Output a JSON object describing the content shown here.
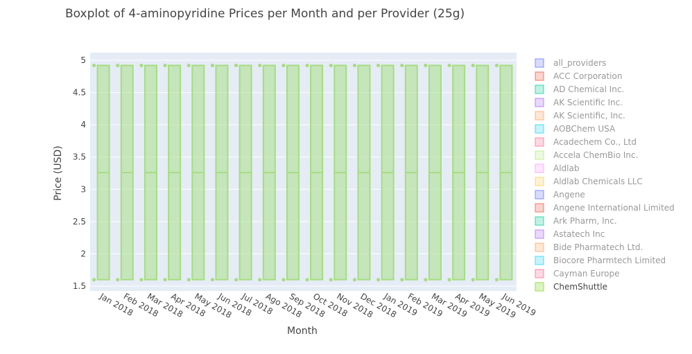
{
  "chart_data": {
    "type": "box",
    "title": "Boxplot of 4-aminopyridine Prices per Month and per Provider (25g)",
    "xlabel": "Month",
    "ylabel": "Price (USD)",
    "ylim": [
      1.5,
      5
    ],
    "yticks": [
      "1.5",
      "2",
      "2.5",
      "3",
      "3.5",
      "4",
      "4.5",
      "5"
    ],
    "categories": [
      "Jan 2018",
      "Feb 2018",
      "Mar 2018",
      "Apr 2018",
      "May 2018",
      "Jun 2018",
      "Jul 2018",
      "Ago 2018",
      "Sep 2018",
      "Oct 2018",
      "Nov 2018",
      "Dec 2018",
      "Jan 2019",
      "Feb 2019",
      "Mar 2019",
      "Apr 2019",
      "May 2019",
      "Jun 2019"
    ],
    "box": {
      "min": 1.6,
      "q1": 1.6,
      "median": 3.26,
      "q3": 4.92,
      "max": 4.92,
      "points": [
        4.92,
        1.6
      ]
    },
    "series_color": "#a6dd80",
    "legend": {
      "position": "right",
      "items": [
        {
          "name": "all_providers",
          "color": "#636efa",
          "active": false
        },
        {
          "name": "ACC Corporation",
          "color": "#ef553b",
          "active": false
        },
        {
          "name": "AD Chemical Inc.",
          "color": "#00cc96",
          "active": false
        },
        {
          "name": "AK Scientific Inc.",
          "color": "#ab63fa",
          "active": false
        },
        {
          "name": "AK Scientific, Inc.",
          "color": "#ffa15a",
          "active": false
        },
        {
          "name": "AOBChem USA",
          "color": "#19d3f3",
          "active": false
        },
        {
          "name": "Acadechem Co., Ltd",
          "color": "#ff6692",
          "active": false
        },
        {
          "name": "Accela ChemBio Inc.",
          "color": "#b6e880",
          "active": false
        },
        {
          "name": "Aldlab",
          "color": "#ff97ff",
          "active": false
        },
        {
          "name": "Aldlab Chemicals LLC",
          "color": "#fecb52",
          "active": false
        },
        {
          "name": "Angene",
          "color": "#636efa",
          "active": false
        },
        {
          "name": "Angene International Limited",
          "color": "#ef553b",
          "active": false
        },
        {
          "name": "Ark Pharm, Inc.",
          "color": "#00cc96",
          "active": false
        },
        {
          "name": "Astatech Inc",
          "color": "#ab63fa",
          "active": false
        },
        {
          "name": "Bide Pharmatech Ltd.",
          "color": "#ffa15a",
          "active": false
        },
        {
          "name": "Biocore Pharmtech Limited",
          "color": "#19d3f3",
          "active": false
        },
        {
          "name": "Cayman Europe",
          "color": "#ff6692",
          "active": false
        },
        {
          "name": "ChemShuttle",
          "color": "#b6e880",
          "active": true
        }
      ]
    }
  }
}
